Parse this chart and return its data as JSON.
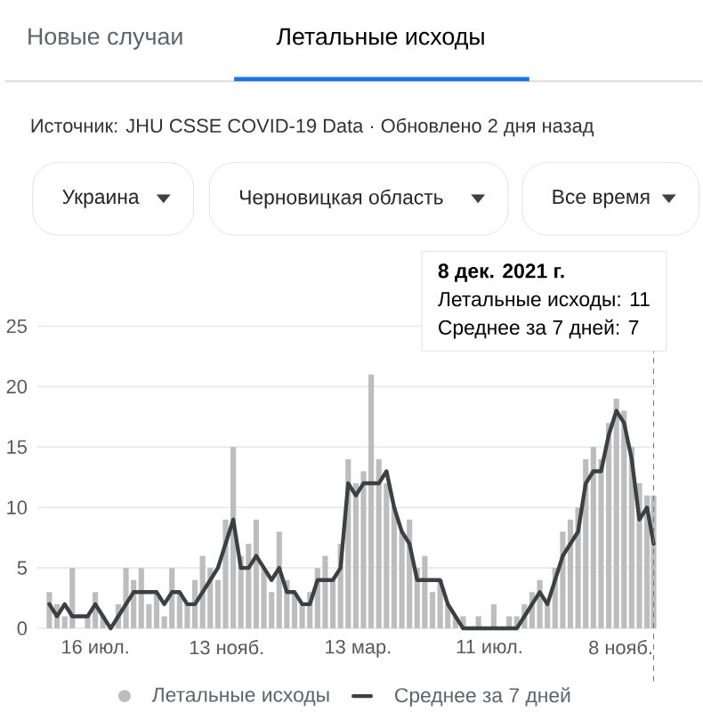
{
  "chart_data": {
    "type": "bar",
    "title": "Летальные исходы",
    "annotations": [
      "Новые случаи",
      "Источник: JHU CSSE COVID-19 Data · Обновлено 2 дня назад",
      "Украина",
      "Черновицкая область",
      "Все время",
      "8 дек. 2021 г.",
      "Летальные исходы: 11",
      "Среднее за 7 дней: 7"
    ],
    "x": [
      "2020-06-04",
      "2020-06-11",
      "2020-06-18",
      "2020-06-25",
      "2020-07-02",
      "2020-07-09",
      "2020-07-16",
      "2020-07-23",
      "2020-07-30",
      "2020-08-06",
      "2020-08-13",
      "2020-08-20",
      "2020-08-27",
      "2020-09-03",
      "2020-09-10",
      "2020-09-17",
      "2020-09-24",
      "2020-10-01",
      "2020-10-08",
      "2020-10-15",
      "2020-10-22",
      "2020-10-29",
      "2020-11-05",
      "2020-11-12",
      "2020-11-19",
      "2020-11-26",
      "2020-12-03",
      "2020-12-10",
      "2020-12-17",
      "2020-12-24",
      "2020-12-31",
      "2021-01-07",
      "2021-01-14",
      "2021-01-21",
      "2021-01-28",
      "2021-02-04",
      "2021-02-11",
      "2021-02-18",
      "2021-02-25",
      "2021-03-04",
      "2021-03-11",
      "2021-03-18",
      "2021-03-25",
      "2021-04-01",
      "2021-04-08",
      "2021-04-15",
      "2021-04-22",
      "2021-04-29",
      "2021-05-06",
      "2021-05-13",
      "2021-05-20",
      "2021-05-27",
      "2021-06-03",
      "2021-06-10",
      "2021-06-17",
      "2021-06-24",
      "2021-07-01",
      "2021-07-08",
      "2021-07-15",
      "2021-07-22",
      "2021-07-29",
      "2021-08-05",
      "2021-08-12",
      "2021-08-19",
      "2021-08-26",
      "2021-09-02",
      "2021-09-09",
      "2021-09-16",
      "2021-09-23",
      "2021-09-30",
      "2021-10-07",
      "2021-10-14",
      "2021-10-21",
      "2021-10-28",
      "2021-11-04",
      "2021-11-11",
      "2021-11-18",
      "2021-11-25",
      "2021-12-02",
      "2021-12-08"
    ],
    "series": [
      {
        "name": "Летальные исходы",
        "color": "#bdbdbd",
        "values": [
          3,
          2,
          1,
          5,
          0,
          1,
          3,
          1,
          0,
          2,
          5,
          4,
          5,
          2,
          3,
          1,
          5,
          3,
          2,
          4,
          6,
          5,
          4,
          9,
          15,
          6,
          7,
          9,
          5,
          3,
          8,
          4,
          3,
          2,
          3,
          5,
          6,
          4,
          7,
          14,
          12,
          13,
          21,
          14,
          12,
          10,
          8,
          9,
          5,
          6,
          3,
          4,
          2,
          1,
          1,
          0,
          1,
          0,
          2,
          0,
          1,
          1,
          2,
          3,
          4,
          2,
          5,
          8,
          9,
          10,
          14,
          15,
          14,
          17,
          19,
          18,
          15,
          12,
          11,
          11
        ]
      },
      {
        "name": "Среднее за 7 дней",
        "type": "line",
        "color": "#3c4043",
        "values": [
          2,
          1,
          2,
          1,
          1,
          1,
          2,
          1,
          0,
          1,
          2,
          3,
          3,
          3,
          3,
          2,
          3,
          3,
          2,
          2,
          3,
          4,
          5,
          7,
          9,
          5,
          5,
          6,
          5,
          4,
          5,
          3,
          3,
          2,
          2,
          4,
          4,
          4,
          5,
          12,
          11,
          12,
          12,
          12,
          13,
          10,
          8,
          7,
          4,
          4,
          4,
          4,
          2,
          1,
          0,
          0,
          0,
          0,
          0,
          0,
          0,
          0,
          1,
          2,
          3,
          2,
          4,
          6,
          7,
          8,
          12,
          13,
          13,
          16,
          18,
          17,
          14,
          9,
          10,
          7
        ]
      }
    ],
    "xlim": [
      "2020-05-24",
      "2021-12-10"
    ],
    "xticks": [
      {
        "value": "2020-07-16",
        "label": "16 июл."
      },
      {
        "value": "2020-11-13",
        "label": "13 нояб."
      },
      {
        "value": "2021-03-13",
        "label": "13 мар."
      },
      {
        "value": "2021-07-11",
        "label": "11 июл."
      },
      {
        "value": "2021-11-08",
        "label": "8 нояб."
      }
    ],
    "ylim": [
      0,
      25
    ],
    "yticks": [
      0,
      5,
      10,
      15,
      20,
      25
    ],
    "grid": "y",
    "legend": "bottom",
    "ref_lines": [
      {
        "axis": "x",
        "value": "2021-12-08",
        "line_style": "dashed",
        "color": "#757575"
      }
    ]
  }
}
